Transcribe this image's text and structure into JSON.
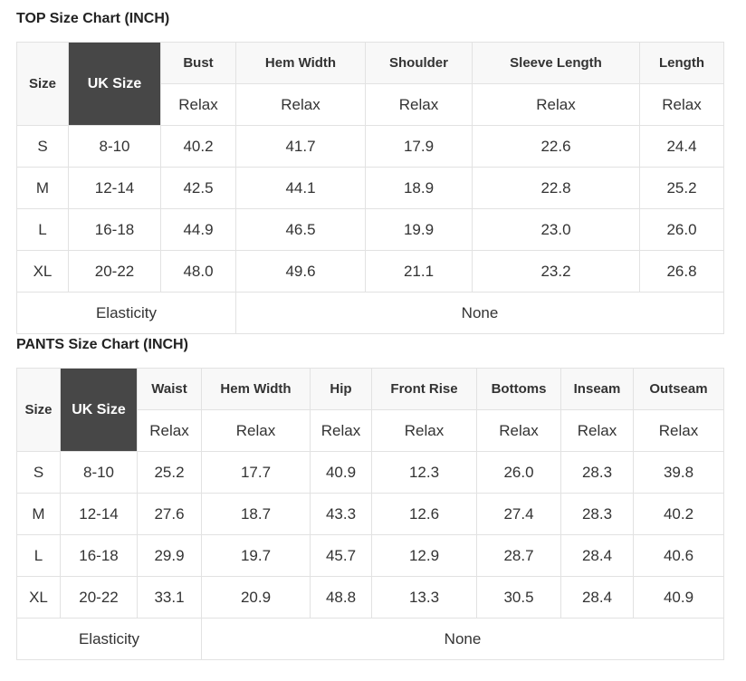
{
  "top": {
    "title": "TOP Size Chart (INCH)",
    "size_header": "Size",
    "uk_header": "UK Size",
    "columns": [
      "Bust",
      "Hem Width",
      "Shoulder",
      "Sleeve Length",
      "Length"
    ],
    "fit_labels": [
      "Relax",
      "Relax",
      "Relax",
      "Relax",
      "Relax"
    ],
    "rows": [
      {
        "size": "S",
        "uk": "8-10",
        "values": [
          "40.2",
          "41.7",
          "17.9",
          "22.6",
          "24.4"
        ]
      },
      {
        "size": "M",
        "uk": "12-14",
        "values": [
          "42.5",
          "44.1",
          "18.9",
          "22.8",
          "25.2"
        ]
      },
      {
        "size": "L",
        "uk": "16-18",
        "values": [
          "44.9",
          "46.5",
          "19.9",
          "23.0",
          "26.0"
        ]
      },
      {
        "size": "XL",
        "uk": "20-22",
        "values": [
          "48.0",
          "49.6",
          "21.1",
          "23.2",
          "26.8"
        ]
      }
    ],
    "elasticity_label": "Elasticity",
    "elasticity_value": "None"
  },
  "pants": {
    "title": "PANTS Size Chart (INCH)",
    "size_header": "Size",
    "uk_header": "UK Size",
    "columns": [
      "Waist",
      "Hem Width",
      "Hip",
      "Front Rise",
      "Bottoms",
      "Inseam",
      "Outseam"
    ],
    "fit_labels": [
      "Relax",
      "Relax",
      "Relax",
      "Relax",
      "Relax",
      "Relax",
      "Relax"
    ],
    "rows": [
      {
        "size": "S",
        "uk": "8-10",
        "values": [
          "25.2",
          "17.7",
          "40.9",
          "12.3",
          "26.0",
          "28.3",
          "39.8"
        ]
      },
      {
        "size": "M",
        "uk": "12-14",
        "values": [
          "27.6",
          "18.7",
          "43.3",
          "12.6",
          "27.4",
          "28.3",
          "40.2"
        ]
      },
      {
        "size": "L",
        "uk": "16-18",
        "values": [
          "29.9",
          "19.7",
          "45.7",
          "12.9",
          "28.7",
          "28.4",
          "40.6"
        ]
      },
      {
        "size": "XL",
        "uk": "20-22",
        "values": [
          "33.1",
          "20.9",
          "48.8",
          "13.3",
          "30.5",
          "28.4",
          "40.9"
        ]
      }
    ],
    "elasticity_label": "Elasticity",
    "elasticity_value": "None"
  }
}
